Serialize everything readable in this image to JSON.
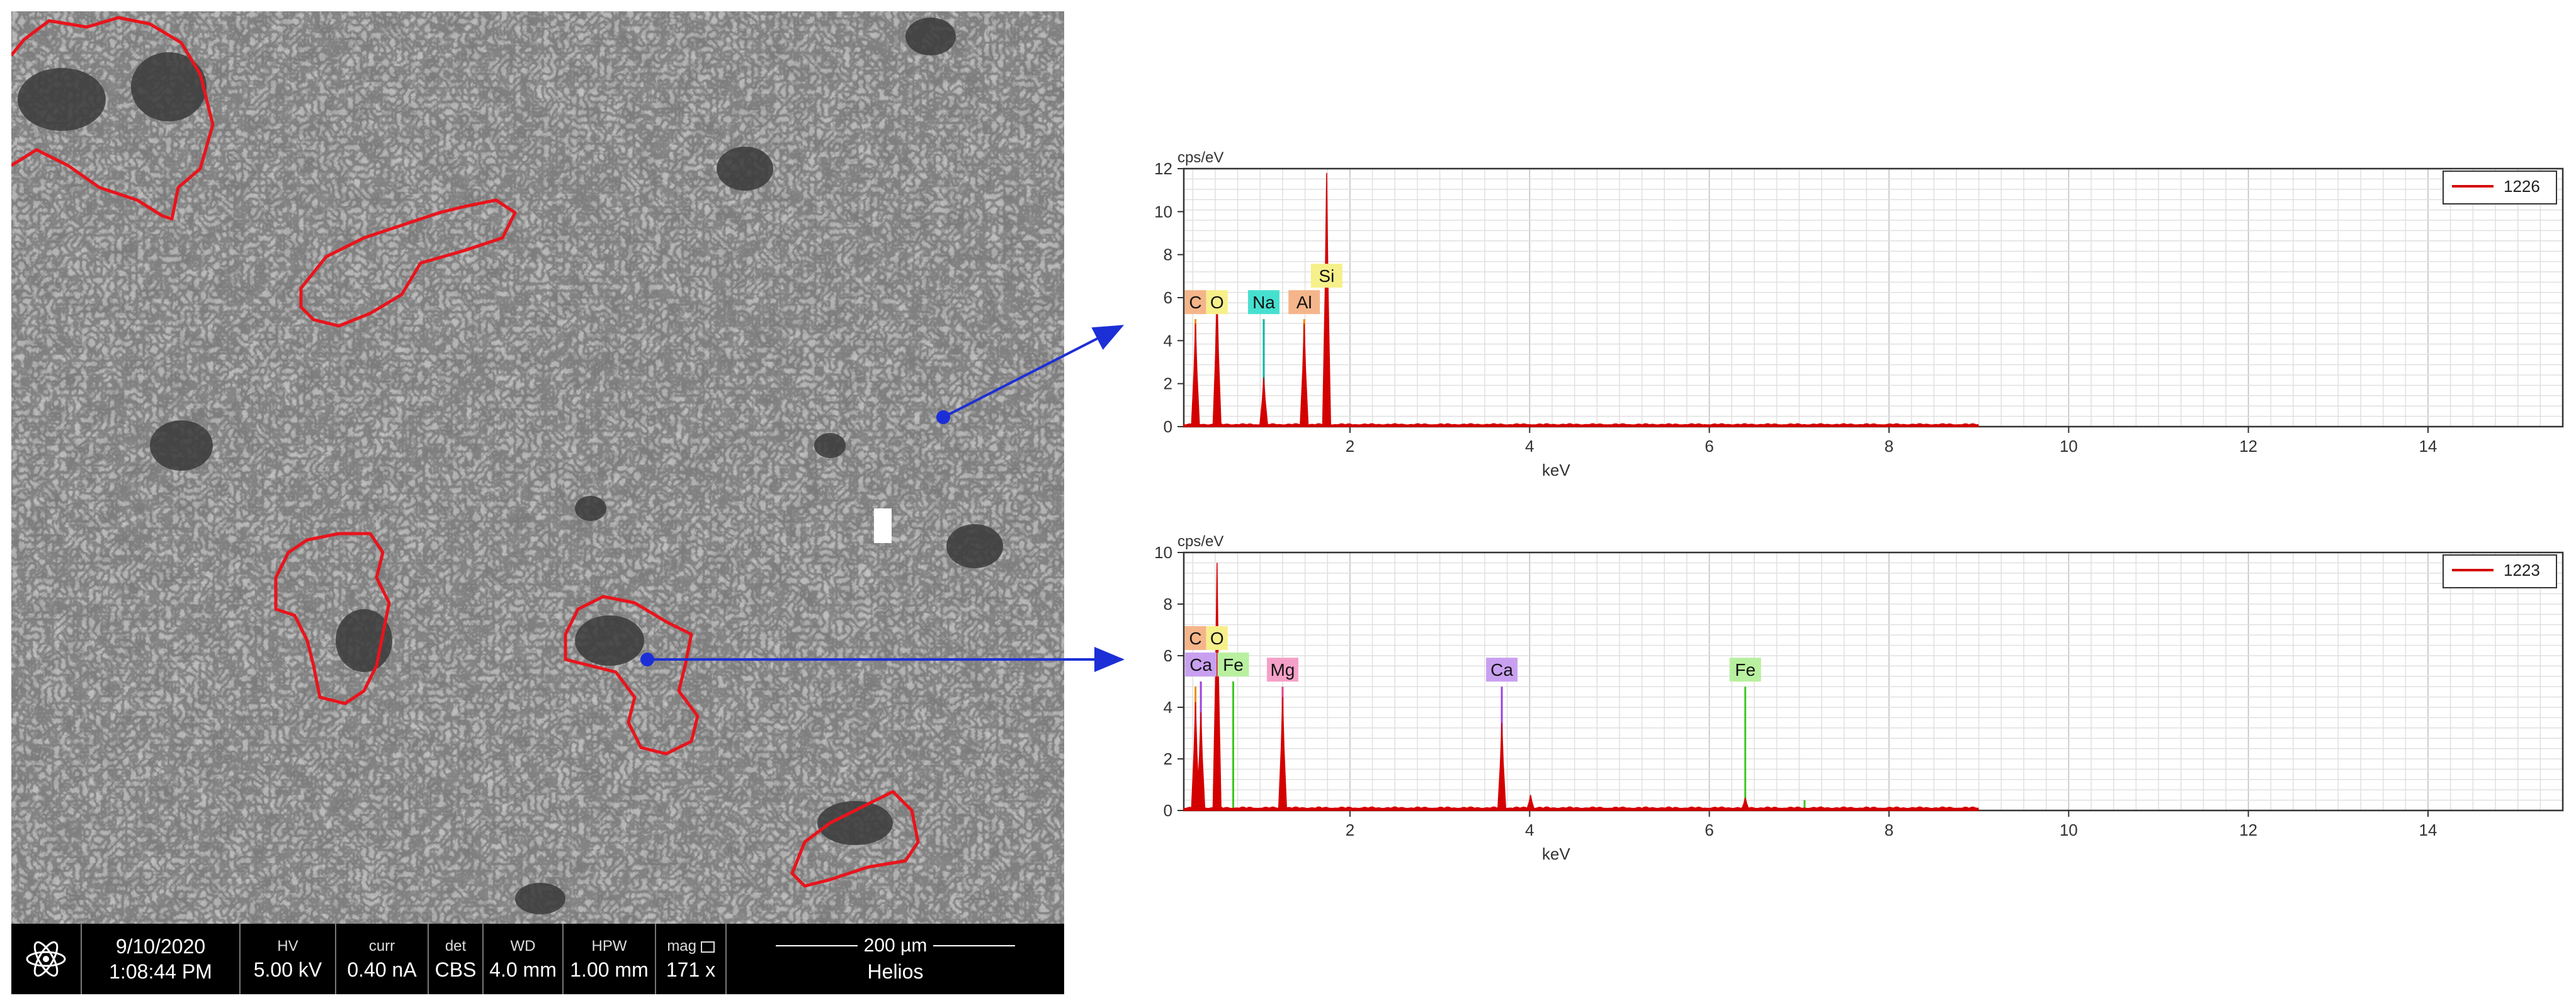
{
  "sem": {
    "info": {
      "date": "9/10/2020",
      "time": "1:08:44 PM",
      "hv_label": "HV",
      "hv_value": "5.00 kV",
      "curr_label": "curr",
      "curr_value": "0.40 nA",
      "det_label": "det",
      "det_value": "CBS",
      "wd_label": "WD",
      "wd_value": "4.0 mm",
      "hpw_label": "HPW",
      "hpw_value": "1.00 mm",
      "mag_label": "mag",
      "mag_value": "171 x",
      "scale_value": "200 µm",
      "instrument": "Helios"
    },
    "colors": {
      "outline": "#e8141c",
      "marker": "#1c2fd6",
      "bar": "#000000"
    }
  },
  "chart_data": [
    {
      "type": "line",
      "legend": {
        "entries": [
          "1226"
        ],
        "placement": "top-right"
      },
      "xlabel": "keV",
      "ylabel": "cps/eV",
      "xlim": [
        0.15,
        15.5
      ],
      "ylim": [
        0,
        12
      ],
      "xticks": [
        2,
        4,
        6,
        8,
        10,
        12,
        14
      ],
      "yticks": [
        0,
        2,
        4,
        6,
        8,
        10,
        12
      ],
      "grid": true,
      "series": [
        {
          "name": "1226",
          "color": "#d40000",
          "peaks": [
            [
              0.28,
              4.8
            ],
            [
              0.52,
              6.2
            ],
            [
              1.04,
              2.3
            ],
            [
              1.49,
              4.8
            ],
            [
              1.74,
              11.8
            ]
          ]
        }
      ],
      "element_markers": [
        {
          "label": "C",
          "x": 0.28,
          "height": 5.0,
          "color": "#f5b58a",
          "line": "#f08c00"
        },
        {
          "label": "O",
          "x": 0.52,
          "height": 5.0,
          "color": "#f6f08a",
          "line": "#e0c000"
        },
        {
          "label": "Na",
          "x": 1.04,
          "height": 5.0,
          "color": "#47e0d0",
          "line": "#00b8a8"
        },
        {
          "label": "Al",
          "x": 1.49,
          "height": 5.0,
          "color": "#f5b58a",
          "line": "#f08c00"
        },
        {
          "label": "Si",
          "x": 1.74,
          "height": 5.0,
          "color": "#f6f08a",
          "line": "#e0c000"
        }
      ]
    },
    {
      "type": "line",
      "legend": {
        "entries": [
          "1223"
        ],
        "placement": "top-right"
      },
      "xlabel": "keV",
      "ylabel": "cps/eV",
      "xlim": [
        0.15,
        15.5
      ],
      "ylim": [
        0,
        10
      ],
      "xticks": [
        2,
        4,
        6,
        8,
        10,
        12,
        14
      ],
      "yticks": [
        0,
        2,
        4,
        6,
        8,
        10
      ],
      "grid": true,
      "series": [
        {
          "name": "1223",
          "color": "#d40000",
          "peaks": [
            [
              0.28,
              4.2
            ],
            [
              0.34,
              3.8
            ],
            [
              0.52,
              9.6
            ],
            [
              1.25,
              4.4
            ],
            [
              3.69,
              3.4
            ],
            [
              4.01,
              0.6
            ],
            [
              6.4,
              0.5
            ]
          ]
        }
      ],
      "element_markers": [
        {
          "label": "Ca",
          "x": 0.34,
          "height": 5.0,
          "color": "#c9a0f0",
          "line": "#a040e0"
        },
        {
          "label": "C",
          "x": 0.28,
          "height": 4.8,
          "color": "#f5b58a",
          "line": "#f08c00"
        },
        {
          "label": "Fe",
          "x": 0.7,
          "height": 5.0,
          "color": "#b8f0a0",
          "line": "#40c820"
        },
        {
          "label": "O",
          "x": 0.52,
          "height": 4.8,
          "color": "#f6f08a",
          "line": "#e0c000"
        },
        {
          "label": "Mg",
          "x": 1.25,
          "height": 4.8,
          "color": "#f5a0c8",
          "line": "#e0408a"
        },
        {
          "label": "Ca",
          "x": 3.69,
          "height": 4.8,
          "color": "#c9a0f0",
          "line": "#a040e0"
        },
        {
          "label": "Fe",
          "x": 6.4,
          "height": 4.8,
          "color": "#b8f0a0",
          "line": "#40c820"
        }
      ],
      "extra_lines": [
        {
          "x": 0.7,
          "height": 4.0,
          "color": "#40c820"
        },
        {
          "x": 7.06,
          "height": 0.4,
          "color": "#40c820"
        }
      ]
    }
  ]
}
